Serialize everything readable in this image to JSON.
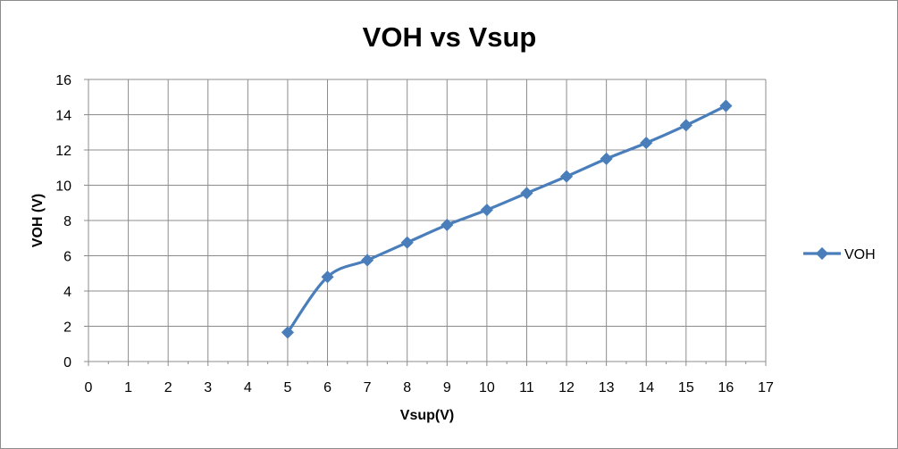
{
  "chart_data": {
    "type": "line",
    "title": "VOH vs Vsup",
    "xlabel": "Vsup(V)",
    "ylabel": "VOH  (V)",
    "xlim": [
      0,
      17
    ],
    "ylim": [
      0,
      16
    ],
    "xticks": [
      0,
      1,
      2,
      3,
      4,
      5,
      6,
      7,
      8,
      9,
      10,
      11,
      12,
      13,
      14,
      15,
      16,
      17
    ],
    "yticks": [
      0,
      2,
      4,
      6,
      8,
      10,
      12,
      14,
      16
    ],
    "grid": true,
    "smooth": true,
    "legend_position": "right",
    "series": [
      {
        "name": "VOH",
        "color": "#4a7ebb",
        "marker": "diamond",
        "x": [
          5,
          6,
          7,
          8,
          9,
          10,
          11,
          12,
          13,
          14,
          15,
          16
        ],
        "y": [
          1.65,
          4.8,
          5.75,
          6.75,
          7.75,
          8.6,
          9.55,
          10.5,
          11.5,
          12.4,
          13.4,
          14.5
        ]
      }
    ]
  }
}
